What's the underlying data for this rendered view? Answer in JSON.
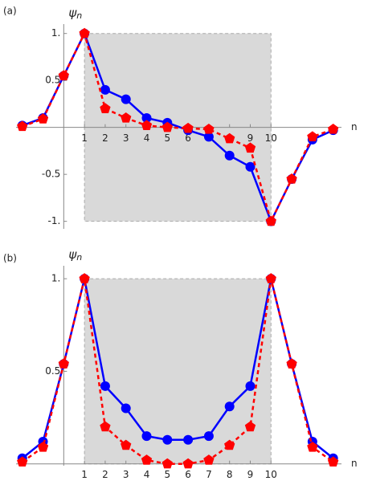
{
  "chart_data": [
    {
      "type": "line",
      "title": "(a)",
      "ylabel": {
        "symbol": "ψ",
        "subscript": "n"
      },
      "xlabel": "n",
      "x": [
        -2,
        -1,
        0,
        1,
        2,
        3,
        4,
        5,
        6,
        7,
        8,
        9,
        10,
        11,
        12,
        13
      ],
      "xlim": [
        -2.3,
        13.4
      ],
      "ylim": [
        -1.08,
        1.1
      ],
      "xticks": [
        1,
        2,
        3,
        4,
        5,
        6,
        7,
        8,
        9,
        10
      ],
      "yticks": [
        {
          "value": -1,
          "label": "-1."
        },
        -0.5,
        0.5,
        {
          "value": 1,
          "label": "1."
        }
      ],
      "shaded_region": {
        "xlim": [
          1,
          10
        ],
        "ylim": [
          -1,
          1
        ]
      },
      "series": [
        {
          "color": "#0000ff",
          "values": [
            0.02,
            0.1,
            0.55,
            1,
            0.4,
            0.3,
            0.1,
            0.05,
            -0.03,
            -0.1,
            -0.3,
            -0.42,
            -1,
            -0.55,
            -0.13,
            -0.03
          ]
        },
        {
          "color": "#ff0000",
          "values": [
            0.01,
            0.09,
            0.55,
            1,
            0.2,
            0.1,
            0.02,
            0.0,
            -0.01,
            -0.02,
            -0.12,
            -0.22,
            -1,
            -0.55,
            -0.1,
            -0.02
          ]
        }
      ]
    },
    {
      "type": "line",
      "title": "(b)",
      "ylabel": {
        "symbol": "ψ",
        "subscript": "n"
      },
      "xlabel": "n",
      "x": [
        -2,
        -1,
        0,
        1,
        2,
        3,
        4,
        5,
        6,
        7,
        8,
        9,
        10,
        11,
        12,
        13
      ],
      "xlim": [
        -2.3,
        13.4
      ],
      "ylim": [
        -0.01,
        1.07
      ],
      "xticks": [
        1,
        2,
        3,
        4,
        5,
        6,
        7,
        8,
        9,
        10
      ],
      "yticks": [
        0.5,
        {
          "value": 1,
          "label": "1."
        }
      ],
      "shaded_region": {
        "xlim": [
          1,
          10
        ],
        "ylim": [
          0,
          1
        ]
      },
      "series": [
        {
          "color": "#0000ff",
          "values": [
            0.03,
            0.12,
            0.54,
            1,
            0.42,
            0.3,
            0.15,
            0.13,
            0.13,
            0.15,
            0.31,
            0.42,
            1,
            0.54,
            0.12,
            0.03
          ]
        },
        {
          "color": "#ff0000",
          "values": [
            0.01,
            0.09,
            0.54,
            1,
            0.2,
            0.1,
            0.02,
            0.0,
            0.0,
            0.02,
            0.1,
            0.2,
            1,
            0.54,
            0.09,
            0.01
          ]
        }
      ]
    }
  ]
}
